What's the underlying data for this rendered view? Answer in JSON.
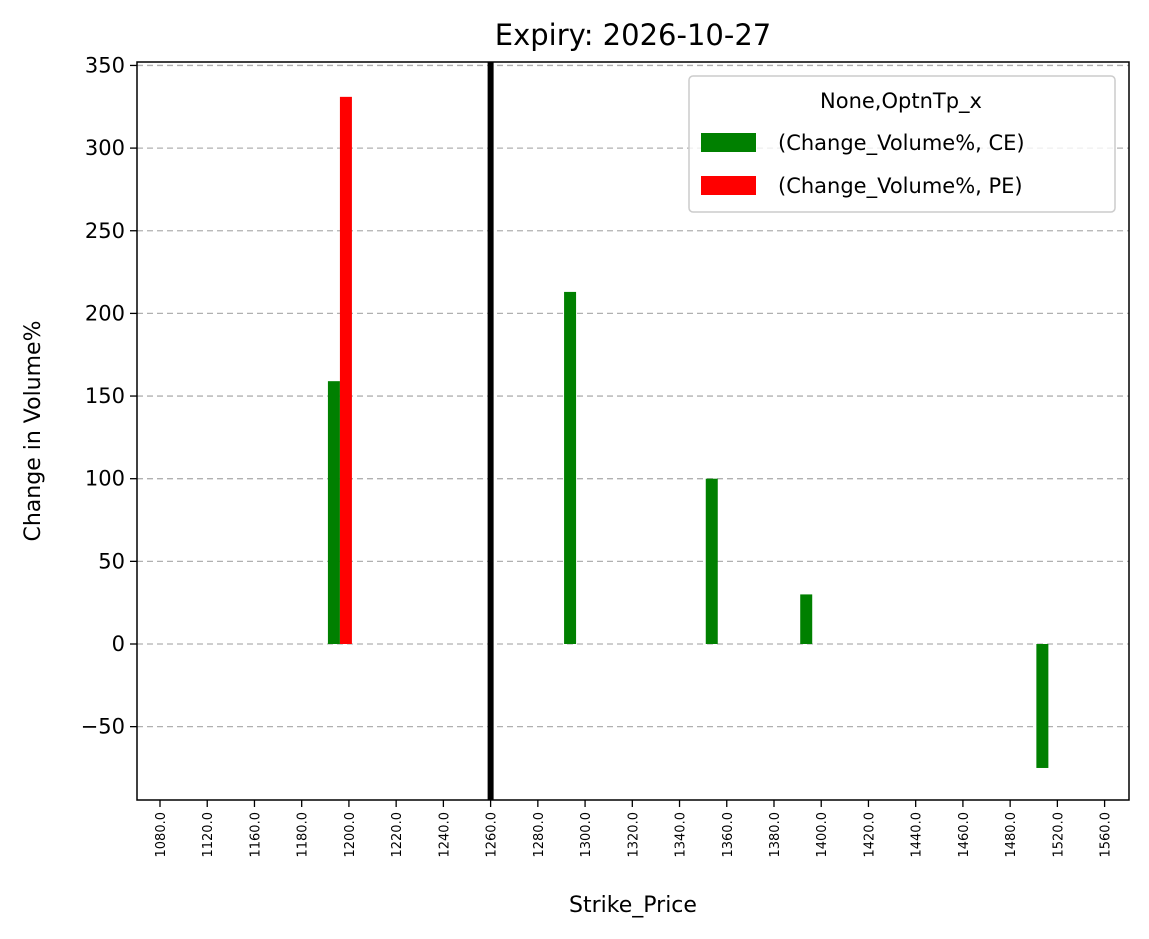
{
  "chart_data": {
    "type": "bar",
    "title": "Expiry: 2026-10-27",
    "xlabel": "Strike_Price",
    "ylabel": "Change in Volume%",
    "categories": [
      "1080.0",
      "1120.0",
      "1160.0",
      "1180.0",
      "1200.0",
      "1220.0",
      "1240.0",
      "1260.0",
      "1280.0",
      "1300.0",
      "1320.0",
      "1340.0",
      "1360.0",
      "1380.0",
      "1400.0",
      "1420.0",
      "1440.0",
      "1460.0",
      "1480.0",
      "1520.0",
      "1560.0"
    ],
    "series": [
      {
        "name": "(Change_Volume%, CE)",
        "color": "#008000",
        "values": [
          null,
          null,
          null,
          null,
          159,
          null,
          null,
          null,
          null,
          213,
          null,
          null,
          100,
          null,
          30,
          null,
          null,
          null,
          null,
          -75,
          null
        ]
      },
      {
        "name": "(Change_Volume%, PE)",
        "color": "#ff0000",
        "values": [
          null,
          null,
          null,
          null,
          331,
          null,
          null,
          null,
          null,
          null,
          null,
          null,
          null,
          null,
          null,
          null,
          null,
          null,
          null,
          null,
          null
        ]
      }
    ],
    "yticks": [
      -50,
      0,
      50,
      100,
      150,
      200,
      250,
      300,
      350
    ],
    "ytick_labels": [
      "−50",
      "0",
      "50",
      "100",
      "150",
      "200",
      "250",
      "300",
      "350"
    ],
    "ylim": [
      -95,
      352
    ],
    "grid": "y-dashed",
    "vline_category": "1260.0",
    "legend": {
      "title": "None,OptnTp_x",
      "position": "top-right"
    }
  }
}
